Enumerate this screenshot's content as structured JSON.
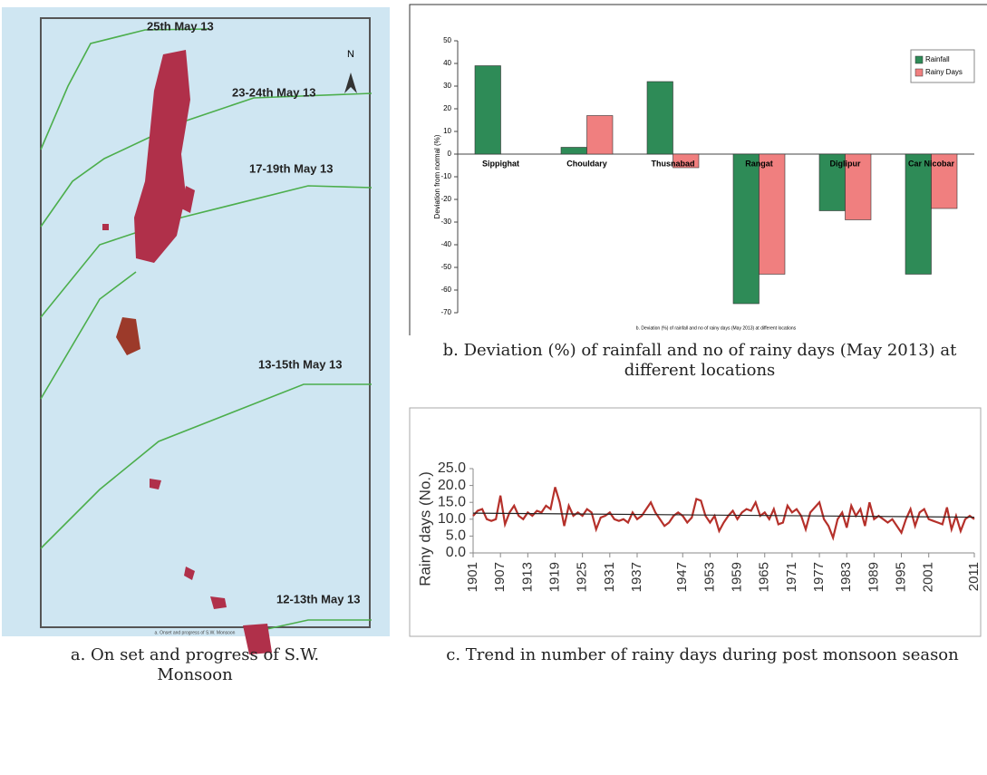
{
  "map": {
    "north": "N",
    "labels": [
      "25th May 13",
      "23-24th May 13",
      "17-19th May 13",
      "13-15th May 13",
      "12-13th May 13"
    ],
    "footer": "a. Onset and progress of S.W. Monsoon",
    "caption": "a. On set and progress of S.W. Monsoon"
  },
  "chart_data": [
    {
      "type": "bar",
      "note": "b. Deviation (%) of rainfall and no of rainy days (May 2013) at different locations",
      "caption": "b. Deviation (%) of rainfall and no of rainy days (May 2013) at different locations",
      "y_label": "Deviation from normal (%)",
      "categories": [
        "Sippighat",
        "Chouldary",
        "Thusnabad",
        "Rangat",
        "Diglipur",
        "Car Nicobar"
      ],
      "series": [
        {
          "name": "Rainfall",
          "color": "#2e8b57",
          "values": [
            39,
            3,
            32,
            -66,
            -25,
            -53
          ]
        },
        {
          "name": "Rainy Days",
          "color": "#f07f7f",
          "values": [
            0,
            17,
            -6,
            -53,
            -29,
            -24
          ]
        }
      ],
      "ylim": [
        -70,
        50
      ],
      "yticks": [
        -70,
        -60,
        -50,
        -40,
        -30,
        -20,
        -10,
        0,
        10,
        20,
        30,
        40,
        50
      ],
      "legend": "top-right"
    },
    {
      "type": "line",
      "caption": "c.  Trend in number of rainy days during post monsoon season",
      "y_label": "Rainy days (No.)",
      "x": [
        1901,
        1902,
        1903,
        1904,
        1905,
        1906,
        1907,
        1908,
        1909,
        1910,
        1911,
        1912,
        1913,
        1914,
        1915,
        1916,
        1917,
        1918,
        1919,
        1920,
        1921,
        1922,
        1923,
        1924,
        1925,
        1926,
        1927,
        1928,
        1929,
        1930,
        1931,
        1932,
        1933,
        1934,
        1935,
        1936,
        1937,
        1938,
        1939,
        1940,
        1941,
        1942,
        1943,
        1944,
        1945,
        1946,
        1947,
        1948,
        1949,
        1950,
        1951,
        1952,
        1953,
        1954,
        1955,
        1956,
        1957,
        1958,
        1959,
        1960,
        1961,
        1962,
        1963,
        1964,
        1965,
        1966,
        1967,
        1968,
        1969,
        1970,
        1971,
        1972,
        1973,
        1974,
        1975,
        1976,
        1977,
        1978,
        1979,
        1980,
        1981,
        1982,
        1983,
        1984,
        1985,
        1986,
        1987,
        1988,
        1989,
        1990,
        1991,
        1992,
        1993,
        1994,
        1995,
        1996,
        1997,
        1998,
        1999,
        2000,
        2001,
        2002,
        2003,
        2004,
        2005,
        2006,
        2007,
        2008,
        2009,
        2010,
        2011
      ],
      "series": [
        {
          "color": "#b5302a",
          "values": [
            11,
            12.5,
            13,
            10,
            9.5,
            10,
            17,
            8.5,
            12,
            14,
            11,
            10,
            12,
            11,
            12.5,
            12,
            14,
            13,
            19.5,
            15,
            8,
            14,
            11,
            12,
            11,
            13,
            12,
            7,
            10.5,
            11,
            12,
            10,
            9.5,
            10,
            9,
            12,
            10,
            11,
            13,
            15,
            12,
            10,
            8,
            9,
            11,
            12,
            11,
            9,
            10.5,
            16,
            15.5,
            11,
            9,
            11,
            6.5,
            9,
            11,
            12.5,
            10,
            12,
            13,
            12.5,
            15,
            11,
            12,
            10,
            13,
            8.5,
            9,
            14,
            12,
            13,
            11,
            7,
            12,
            13.5,
            15,
            10,
            8,
            4.5,
            10,
            12,
            7.5,
            14,
            11,
            13,
            8,
            15,
            10,
            11,
            10,
            9,
            10,
            8,
            6,
            10,
            13,
            8,
            12,
            13,
            10,
            9.5,
            9,
            8.5,
            13.5,
            7,
            11,
            6.5,
            10,
            11,
            10
          ]
        }
      ],
      "trend": {
        "color": "#222222",
        "x": [
          1901,
          2011
        ],
        "values": [
          11.8,
          10.6
        ]
      },
      "xlim": [
        1901,
        2011
      ],
      "xticks": [
        1901,
        1907,
        1913,
        1919,
        1925,
        1931,
        1937,
        1947,
        1953,
        1959,
        1965,
        1971,
        1977,
        1983,
        1989,
        1995,
        2001,
        2011
      ],
      "ylim": [
        0,
        25
      ],
      "yticks": [
        {
          "value": 0,
          "label": "0.0"
        },
        {
          "value": 5,
          "label": "5.0"
        },
        {
          "value": 10,
          "label": "10.0"
        },
        {
          "value": 15,
          "label": "15.0"
        },
        {
          "value": 20,
          "label": "20.0"
        },
        {
          "value": 25,
          "label": "25.0"
        }
      ]
    }
  ]
}
